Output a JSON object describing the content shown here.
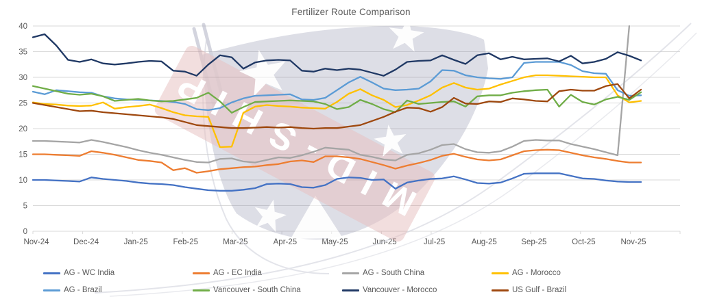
{
  "title": "Fertilizer Route Comparison",
  "chart_data": {
    "type": "line",
    "title": "Fertilizer Route Comparison",
    "subtitle": "",
    "xlabel": "",
    "ylabel": "",
    "x_resolution": "weekly (53 points, Nov-24 to Nov-25)",
    "categories": [
      "Nov-24",
      "Dec-24",
      "Jan-25",
      "Feb-25",
      "Mar-25",
      "Apr-25",
      "May-25",
      "Jun-25",
      "Jul-25",
      "Aug-25",
      "Sep-25",
      "Oct-25",
      "Nov-25"
    ],
    "ylim": [
      0,
      40
    ],
    "yticks": [
      0,
      5,
      10,
      15,
      20,
      25,
      30,
      35,
      40
    ],
    "grid": true,
    "gridline_color": "#D9D9D9",
    "axis_label_color": "#595959",
    "legend_position": "bottom",
    "series": [
      {
        "name": "AG - WC India",
        "color": "#4472C4",
        "values": [
          10.0,
          10.0,
          9.9,
          9.8,
          9.7,
          10.5,
          10.2,
          10.0,
          9.8,
          9.5,
          9.3,
          9.2,
          9.0,
          8.6,
          8.3,
          8.0,
          7.9,
          7.9,
          8.1,
          8.4,
          9.2,
          9.3,
          9.2,
          8.6,
          8.5,
          9.0,
          10.2,
          10.5,
          10.4,
          10.0,
          10.1,
          8.3,
          9.5,
          9.9,
          10.2,
          10.3,
          10.7,
          10.1,
          9.4,
          9.3,
          9.5,
          10.3,
          11.2,
          11.3,
          11.3,
          11.3,
          10.8,
          10.3,
          10.2,
          9.9,
          9.7,
          9.6,
          9.6
        ]
      },
      {
        "name": "AG - EC India",
        "color": "#ED7D31",
        "values": [
          15.0,
          15.0,
          14.9,
          14.8,
          14.7,
          15.6,
          15.3,
          14.9,
          14.4,
          13.9,
          13.7,
          13.4,
          11.9,
          12.3,
          11.4,
          11.7,
          12.1,
          12.3,
          12.5,
          12.6,
          12.9,
          13.1,
          13.6,
          13.8,
          13.5,
          14.6,
          14.6,
          14.4,
          14.1,
          13.5,
          12.9,
          12.2,
          12.8,
          13.3,
          13.9,
          14.7,
          15.1,
          14.5,
          14.0,
          13.8,
          14.0,
          14.8,
          15.6,
          15.8,
          15.9,
          15.8,
          15.3,
          14.8,
          14.4,
          14.1,
          13.7,
          13.4,
          13.4
        ]
      },
      {
        "name": "AG - South China",
        "color": "#A5A5A5",
        "values": [
          17.6,
          17.6,
          17.5,
          17.4,
          17.3,
          17.8,
          17.4,
          16.9,
          16.4,
          15.8,
          15.3,
          14.9,
          14.4,
          13.9,
          13.5,
          13.4,
          14.1,
          14.2,
          13.6,
          13.4,
          13.9,
          14.4,
          14.3,
          14.8,
          15.5,
          16.3,
          16.1,
          15.9,
          14.9,
          14.5,
          14.0,
          13.8,
          14.9,
          15.2,
          15.9,
          16.8,
          17.0,
          16.0,
          15.4,
          15.3,
          15.6,
          16.5,
          17.6,
          17.8,
          17.7,
          17.7,
          17.0,
          16.5,
          16.0,
          15.4,
          14.8,
          40
        ]
      },
      {
        "name": "AG - Morocco",
        "color": "#FFC000",
        "values": [
          25.1,
          24.8,
          24.7,
          24.5,
          24.4,
          24.5,
          25.1,
          23.9,
          24.2,
          24.4,
          24.7,
          24.0,
          23.2,
          22.6,
          22.4,
          22.3,
          16.4,
          16.5,
          23.1,
          24.3,
          24.6,
          24.4,
          24.3,
          24.1,
          24.0,
          23.9,
          25.2,
          26.8,
          27.7,
          26.5,
          25.6,
          24.2,
          24.6,
          25.5,
          26.5,
          28.0,
          28.9,
          28.0,
          27.6,
          27.8,
          28.6,
          29.3,
          30.0,
          30.4,
          30.4,
          30.3,
          30.2,
          30.1,
          30.0,
          30.0,
          26.5,
          25.1,
          25.4
        ]
      },
      {
        "name": "AG - Brazil",
        "color": "#5B9BD5",
        "values": [
          27.2,
          26.7,
          27.5,
          27.3,
          27.1,
          27.0,
          26.3,
          25.9,
          25.7,
          25.6,
          25.5,
          25.4,
          25.2,
          24.8,
          23.8,
          23.6,
          24.0,
          25.1,
          25.9,
          26.4,
          26.5,
          26.6,
          26.7,
          25.7,
          25.6,
          26.0,
          27.5,
          29.0,
          30.1,
          29.0,
          27.8,
          27.5,
          27.6,
          27.8,
          29.2,
          31.4,
          31.3,
          30.4,
          30.0,
          29.8,
          29.7,
          30.0,
          32.8,
          33.0,
          33.0,
          33.0,
          32.4,
          31.2,
          30.8,
          30.7,
          27.5,
          26.4,
          26.5
        ]
      },
      {
        "name": "Vancouver - South China",
        "color": "#70AD47",
        "values": [
          28.3,
          27.8,
          27.3,
          26.8,
          26.6,
          26.8,
          26.3,
          25.4,
          25.6,
          25.8,
          25.5,
          25.3,
          25.4,
          25.7,
          26.0,
          27.0,
          25.3,
          23.1,
          24.2,
          25.2,
          25.3,
          25.4,
          25.5,
          25.4,
          25.3,
          24.8,
          23.8,
          24.2,
          25.6,
          24.8,
          23.8,
          23.2,
          25.5,
          24.8,
          25.0,
          25.2,
          25.3,
          24.3,
          26.3,
          26.5,
          26.5,
          27.0,
          27.3,
          27.5,
          27.6,
          24.3,
          26.6,
          25.2,
          24.7,
          25.7,
          26.2,
          25.6,
          27.1
        ]
      },
      {
        "name": "Vancouver - Morocco",
        "color": "#1F3864",
        "values": [
          37.8,
          38.4,
          36.2,
          33.4,
          33.0,
          33.5,
          32.7,
          32.5,
          32.7,
          33.0,
          33.2,
          33.1,
          31.3,
          31.1,
          30.3,
          32.5,
          34.3,
          33.9,
          31.7,
          32.9,
          33.3,
          33.4,
          33.3,
          31.3,
          31.1,
          31.7,
          31.4,
          31.7,
          31.5,
          30.9,
          30.3,
          31.5,
          33.0,
          33.2,
          33.3,
          34.3,
          33.4,
          32.6,
          34.3,
          34.7,
          33.5,
          34.0,
          33.5,
          33.6,
          33.7,
          33.1,
          34.2,
          32.7,
          33.0,
          33.6,
          34.9,
          34.2,
          33.3
        ]
      },
      {
        "name": "US Gulf - Brazil",
        "color": "#9E480E",
        "values": [
          25.0,
          24.6,
          24.2,
          23.8,
          23.4,
          23.5,
          23.2,
          23.0,
          22.8,
          22.6,
          22.4,
          22.2,
          21.9,
          21.3,
          20.7,
          20.5,
          20.3,
          20.1,
          20.1,
          20.2,
          20.3,
          20.2,
          20.3,
          20.1,
          20.0,
          20.1,
          20.1,
          20.4,
          20.7,
          21.5,
          22.3,
          23.3,
          24.1,
          24.0,
          23.3,
          24.2,
          26.0,
          24.9,
          24.8,
          25.3,
          25.2,
          25.9,
          25.7,
          25.4,
          25.3,
          27.3,
          27.6,
          27.4,
          27.4,
          28.3,
          28.7,
          25.9,
          27.6
        ]
      }
    ],
    "annotations": {
      "gray_series_note": "AG - South China ends with a vertical spike to 40 just before Nov-25",
      "watermark_text": "MID-SHIP"
    },
    "watermark": {
      "text": "MID-SHIP",
      "flag_color": "#8F93AD",
      "band_color": "#D08585",
      "star_color": "#FFFFFF",
      "outline_color": "#C9CBD6"
    }
  },
  "legend": {
    "rows": 2,
    "order_note": "row-major: series 0-3 top row, 4-7 bottom row"
  }
}
